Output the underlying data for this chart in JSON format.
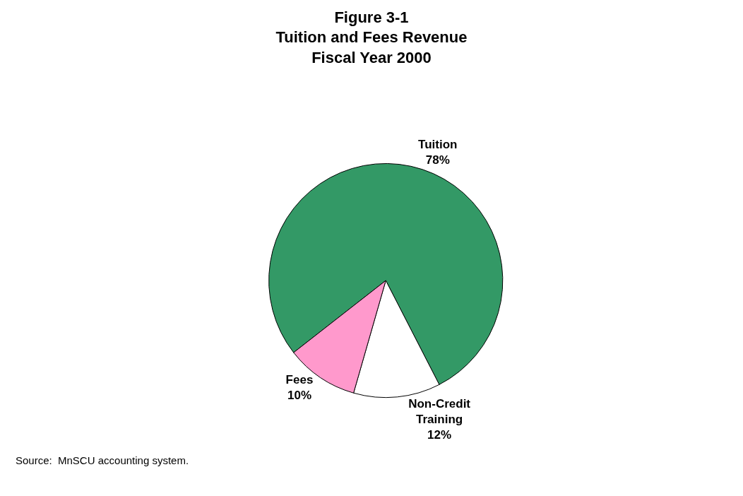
{
  "chart_data": {
    "type": "pie",
    "title": "Figure 3-1\nTuition and Fees Revenue\nFiscal Year 2000",
    "categories": [
      "Tuition",
      "Non-Credit Training",
      "Fees"
    ],
    "values": [
      78,
      12,
      10
    ],
    "value_labels": [
      "78%",
      "12%",
      "10%"
    ],
    "colors": [
      "#339966",
      "#ffffff",
      "#ff99cc"
    ],
    "legend": false,
    "annotations": [
      "Source:  MnSCU accounting system."
    ]
  }
}
